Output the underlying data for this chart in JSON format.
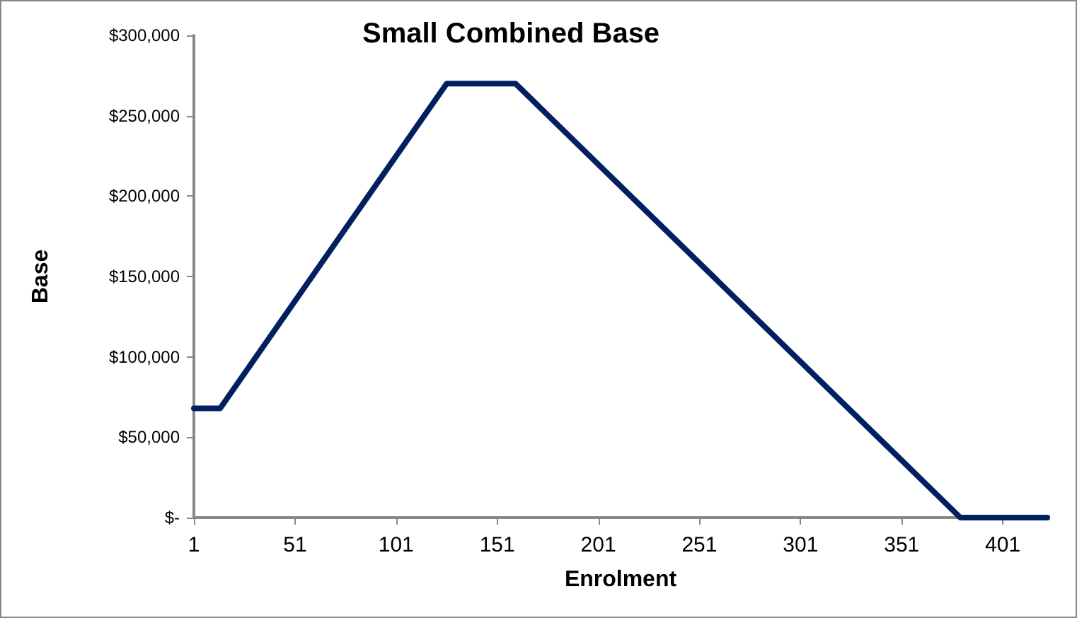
{
  "chart_data": {
    "type": "line",
    "title": "Small Combined Base",
    "xlabel": "Enrolment",
    "ylabel": "Base",
    "x": [
      1,
      14,
      126,
      160,
      380,
      423
    ],
    "series": [
      {
        "color": "#002060",
        "values": [
          68000,
          68000,
          270000,
          270000,
          0,
          0
        ]
      }
    ],
    "xlim": [
      1,
      423
    ],
    "xticks": [
      1,
      51,
      101,
      151,
      201,
      251,
      301,
      351,
      401
    ],
    "ylim": [
      0,
      300000
    ],
    "yticks": [
      {
        "value": 0,
        "label": "$-"
      },
      {
        "value": 50000,
        "label": "$50,000"
      },
      {
        "value": 100000,
        "label": "$100,000"
      },
      {
        "value": 150000,
        "label": "$150,000"
      },
      {
        "value": 200000,
        "label": "$200,000"
      },
      {
        "value": 250000,
        "label": "$250,000"
      },
      {
        "value": 300000,
        "label": "$300,000"
      }
    ],
    "grid": false,
    "marker": "none",
    "line_style": "solid"
  }
}
